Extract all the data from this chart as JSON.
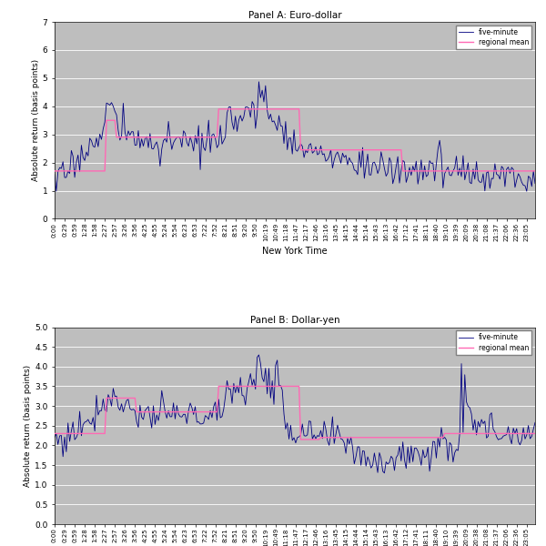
{
  "panel_a_title": "Panel A: Euro-dollar",
  "panel_b_title": "Panel B: Dollar-yen",
  "xlabel": "New York Time",
  "ylabel": "Absolute return (basis points)",
  "legend_five_minute": "five-minute",
  "legend_regional_mean": "regional mean",
  "line_color": "#000080",
  "step_color": "#FF69B4",
  "bg_color": "#BEBEBE",
  "fig_bg_color": "#FFFFFF",
  "panel_a_ylim": [
    0,
    7
  ],
  "panel_b_ylim": [
    0,
    5
  ],
  "panel_a_yticks": [
    0,
    1,
    2,
    3,
    4,
    5,
    6,
    7
  ],
  "panel_b_yticks": [
    0,
    0.5,
    1,
    1.5,
    2,
    2.5,
    3,
    3.5,
    4,
    4.5,
    5
  ]
}
